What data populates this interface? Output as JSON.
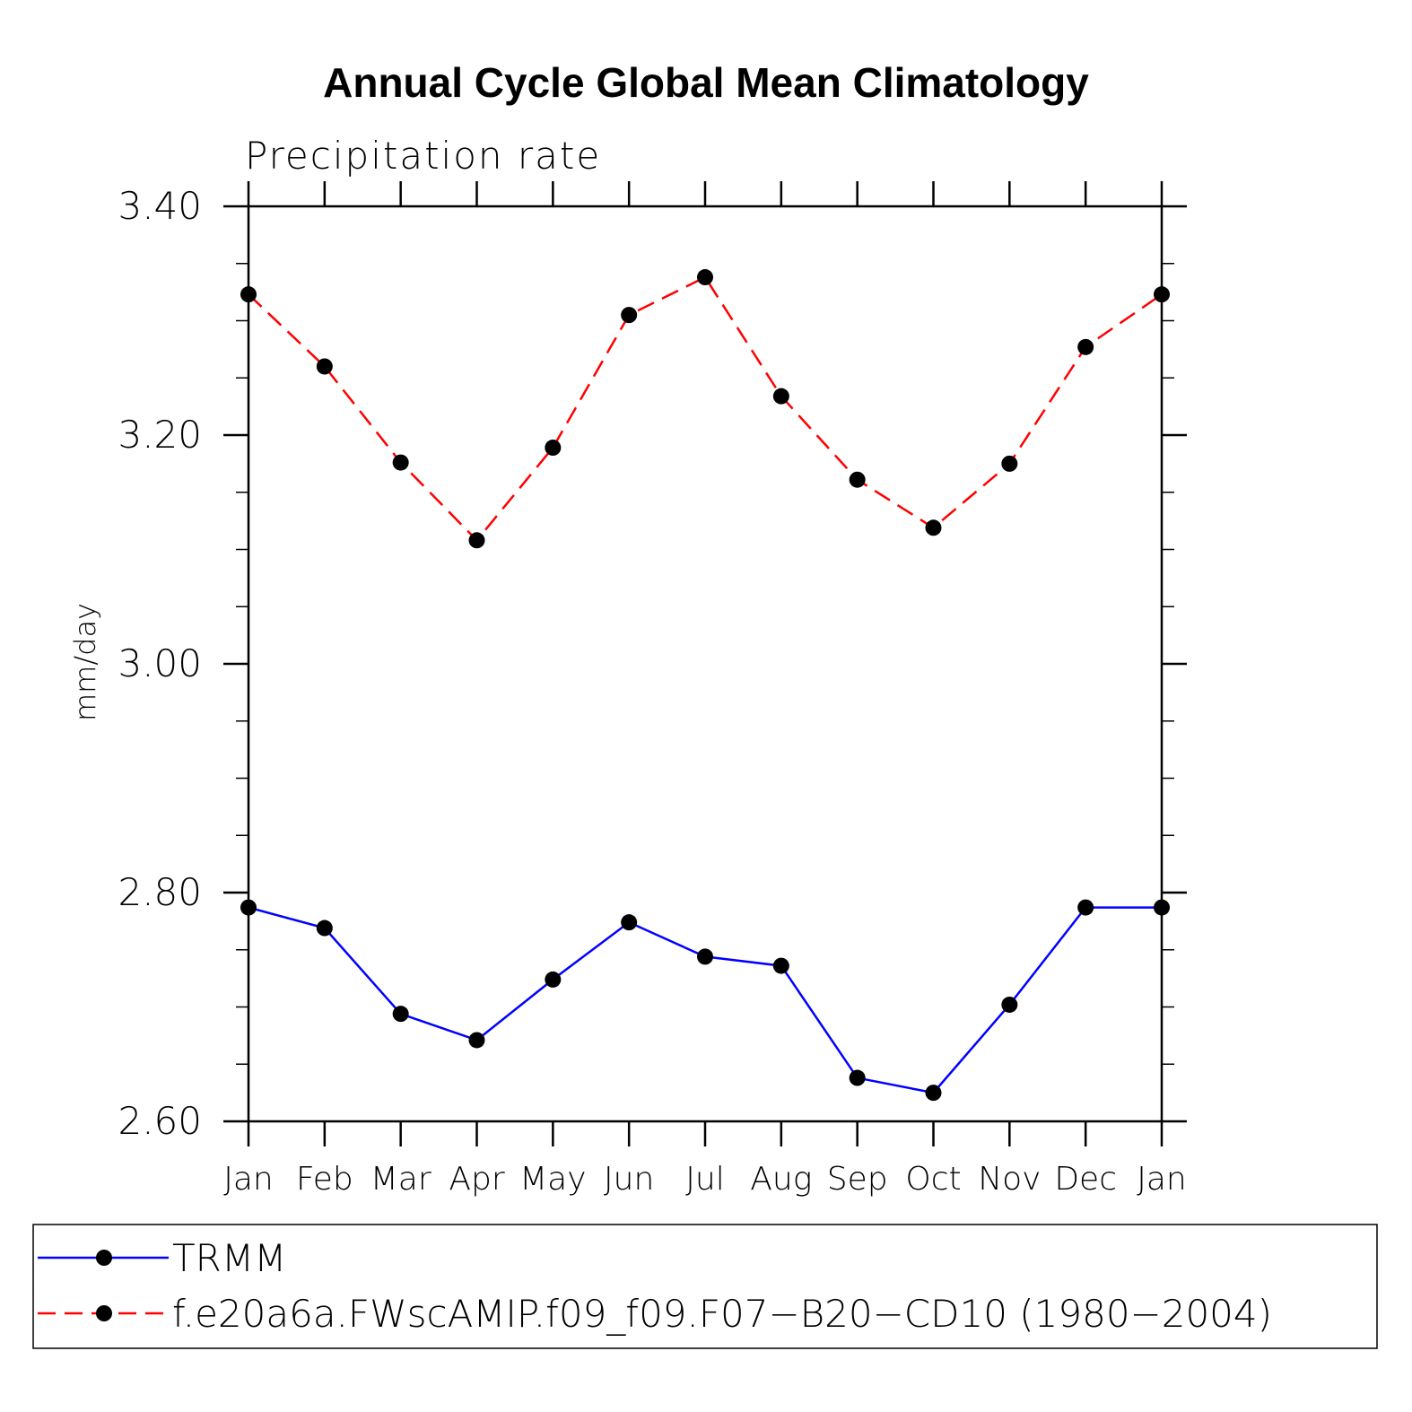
{
  "chart_data": {
    "type": "line",
    "title": "Annual Cycle Global Mean Climatology",
    "subtitle": "Precipitation rate",
    "xlabel": "",
    "ylabel": "mm/day",
    "categories": [
      "Jan",
      "Feb",
      "Mar",
      "Apr",
      "May",
      "Jun",
      "Jul",
      "Aug",
      "Sep",
      "Oct",
      "Nov",
      "Dec",
      "Jan"
    ],
    "ylim": [
      2.6,
      3.4
    ],
    "yticks": [
      2.6,
      2.8,
      3.0,
      3.2,
      3.4
    ],
    "ytick_labels": [
      "2.60",
      "2.80",
      "3.00",
      "3.20",
      "3.40"
    ],
    "grid": false,
    "legend_position": "bottom",
    "series": [
      {
        "name": "TRMM",
        "color": "#0000ff",
        "line_style": "solid",
        "marker": "circle",
        "values": [
          2.787,
          2.769,
          2.694,
          2.671,
          2.724,
          2.774,
          2.744,
          2.736,
          2.638,
          2.625,
          2.702,
          2.787,
          2.787
        ]
      },
      {
        "name": "f.e20a6a.FWscAMIP.f09_f09.F07−B20−CD10 (1980−2004)",
        "color": "#ff0000",
        "line_style": "dashed",
        "marker": "circle",
        "values": [
          3.323,
          3.26,
          3.176,
          3.108,
          3.189,
          3.305,
          3.338,
          3.234,
          3.161,
          3.119,
          3.175,
          3.277,
          3.323
        ]
      }
    ]
  },
  "colors": {
    "axis": "#000000",
    "marker": "#000000",
    "background": "#ffffff"
  }
}
